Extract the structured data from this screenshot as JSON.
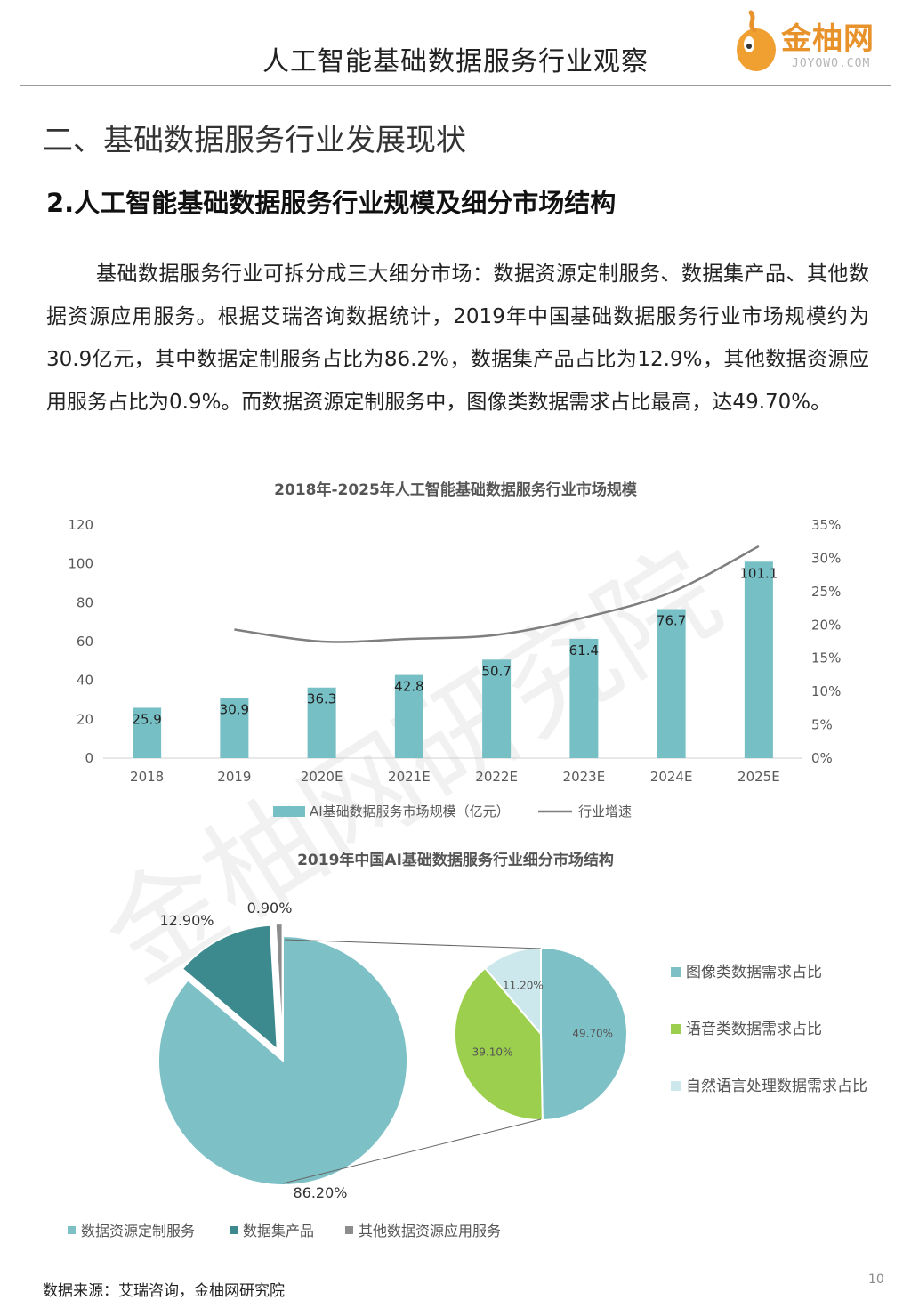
{
  "header": {
    "title": "人工智能基础数据服务行业观察",
    "logo_text": "金柚网",
    "logo_url": "JOYOWO.COM"
  },
  "section_title": "二、基础数据服务行业发展现状",
  "sub_title": "2.人工智能基础数据服务行业规模及细分市场结构",
  "paragraph": "基础数据服务行业可拆分成三大细分市场：数据资源定制服务、数据集产品、其他数据资源应用服务。根据艾瑞咨询数据统计，2019年中国基础数据服务行业市场规模约为30.9亿元，其中数据定制服务占比为86.2%，数据集产品占比为12.9%，其他数据资源应用服务占比为0.9%。而数据资源定制服务中，图像类数据需求占比最高，达49.70%。",
  "watermark": "金柚网研究院",
  "colors": {
    "bar": "#76bfc4",
    "line": "#7f7f7f",
    "custom": "#7dc0c6",
    "dataset": "#3d8a8e",
    "other": "#8c8c8c",
    "image": "#7dc0c6",
    "voice": "#9ccf4d",
    "nlp": "#cde8ec"
  },
  "chart_data": [
    {
      "type": "bar",
      "title": "2018年-2025年人工智能基础数据服务行业市场规模",
      "categories": [
        "2018",
        "2019",
        "2020E",
        "2021E",
        "2022E",
        "2023E",
        "2024E",
        "2025E"
      ],
      "series": [
        {
          "name": "AI基础数据服务市场规模（亿元）",
          "type": "bar",
          "values": [
            25.9,
            30.9,
            36.3,
            42.8,
            50.7,
            61.4,
            76.7,
            101.1
          ]
        },
        {
          "name": "行业增速",
          "type": "line",
          "axis": "right",
          "values": [
            null,
            19.3,
            17.5,
            17.9,
            18.5,
            21.1,
            24.9,
            31.8
          ]
        }
      ],
      "ylim": [
        0,
        120
      ],
      "yticks": [
        "0",
        "20",
        "40",
        "60",
        "80",
        "100",
        "120"
      ],
      "y2lim": [
        0,
        35
      ],
      "y2ticks": [
        "0%",
        "5%",
        "10%",
        "15%",
        "20%",
        "25%",
        "30%",
        "35%"
      ],
      "legend": "bottom",
      "grid": false
    },
    {
      "type": "pie",
      "title": "2019年中国AI基础数据服务行业细分市场结构",
      "slices": [
        {
          "name": "数据资源定制服务",
          "value": 86.2,
          "label": "86.20%"
        },
        {
          "name": "数据集产品",
          "value": 12.9,
          "label": "12.90%"
        },
        {
          "name": "其他数据资源应用服务",
          "value": 0.9,
          "label": "0.90%"
        }
      ],
      "legend": "bottom"
    },
    {
      "type": "pie",
      "slices": [
        {
          "name": "图像类数据需求占比",
          "value": 49.7,
          "label": "49.70%"
        },
        {
          "name": "语音类数据需求占比",
          "value": 39.1,
          "label": "39.10%"
        },
        {
          "name": "自然语言处理数据需求占比",
          "value": 11.2,
          "label": "11.20%"
        }
      ],
      "legend": "right"
    }
  ],
  "footer": {
    "source": "数据来源：艾瑞咨询，金柚网研究院",
    "page_number": "10"
  }
}
